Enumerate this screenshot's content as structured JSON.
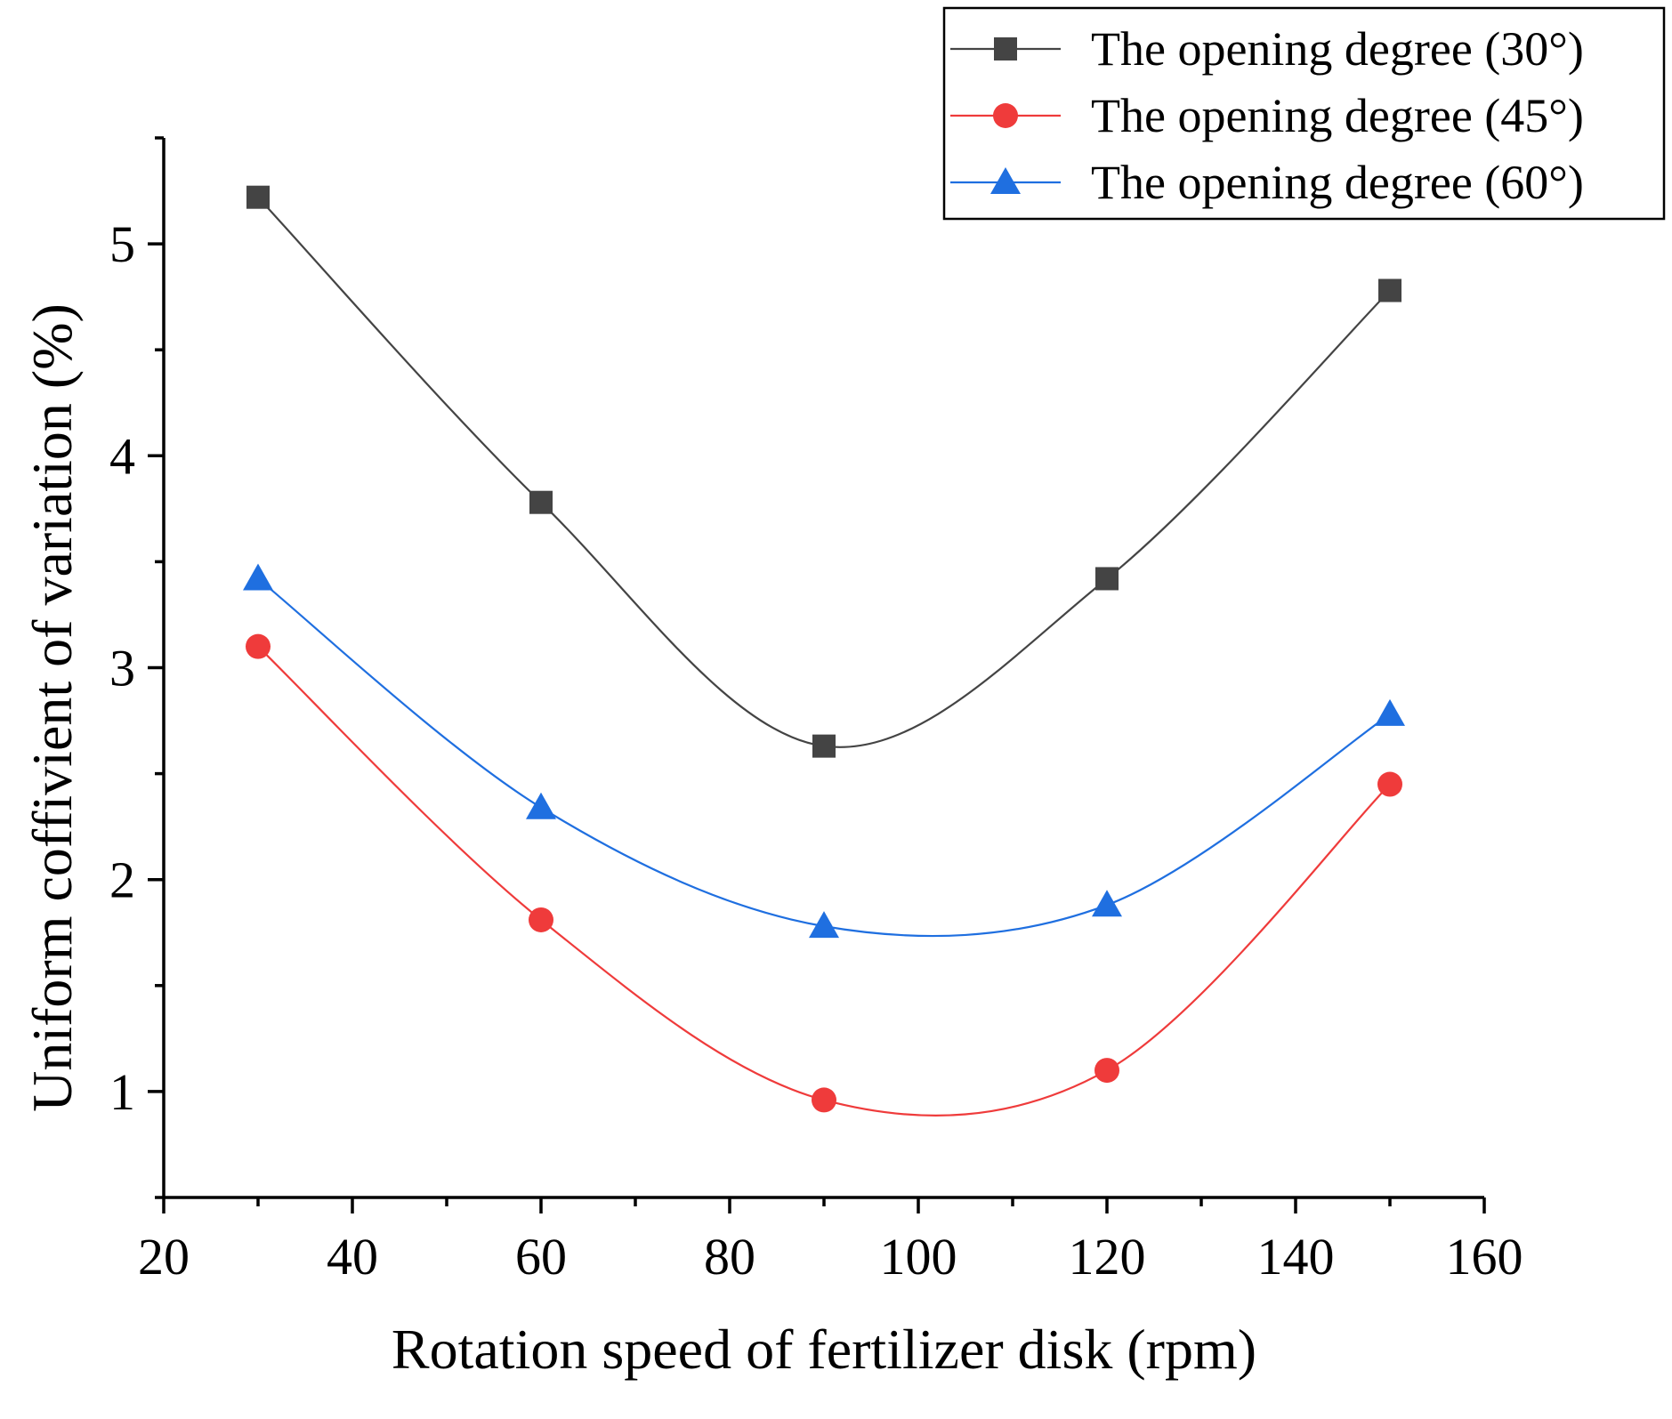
{
  "chart_data": {
    "type": "line",
    "title": "",
    "xlabel": "Rotation speed of fertilizer disk (rpm)",
    "ylabel": "Uniform coffivient of variation (%)",
    "xlim": [
      20,
      160
    ],
    "ylim": [
      0.5,
      5.5
    ],
    "x_ticks": [
      20,
      40,
      60,
      80,
      100,
      120,
      140,
      160
    ],
    "y_ticks": [
      1,
      2,
      3,
      4,
      5
    ],
    "grid": false,
    "smoothed": true,
    "legend_position": "top-right",
    "series": [
      {
        "name": "The opening degree (30°)",
        "color": "#444444",
        "marker": "square",
        "x": [
          30,
          60,
          90,
          120,
          150
        ],
        "y": [
          5.22,
          3.78,
          2.63,
          3.42,
          4.78
        ]
      },
      {
        "name": "The opening degree (45°)",
        "color": "#ef3b3b",
        "marker": "circle",
        "x": [
          30,
          60,
          90,
          120,
          150
        ],
        "y": [
          3.1,
          1.81,
          0.96,
          1.1,
          2.45
        ]
      },
      {
        "name": "The opening degree (60°)",
        "color": "#1f6fe0",
        "marker": "triangle",
        "x": [
          30,
          60,
          90,
          120,
          150
        ],
        "y": [
          3.42,
          2.34,
          1.78,
          1.88,
          2.78
        ]
      }
    ]
  }
}
